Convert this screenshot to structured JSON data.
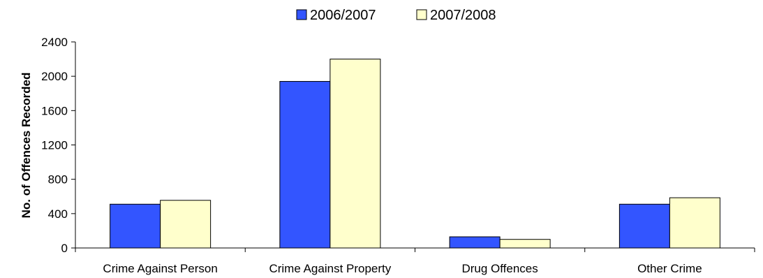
{
  "chart_data": {
    "type": "bar",
    "categories": [
      "Crime Against Person",
      "Crime Against Property",
      "Drug Offences",
      "Other Crime"
    ],
    "series": [
      {
        "name": "2006/2007",
        "values": [
          510,
          1940,
          130,
          510
        ],
        "color": "#3355FF"
      },
      {
        "name": "2007/2008",
        "values": [
          555,
          2200,
          100,
          585
        ],
        "color": "#FFFFCC"
      }
    ],
    "title": "",
    "xlabel": "",
    "ylabel": "No. of Offences Recorded",
    "ylim": [
      0,
      2400
    ],
    "yticks": [
      0,
      400,
      800,
      1200,
      1600,
      2000,
      2400
    ],
    "ytick_labels": [
      "0",
      "400",
      "800",
      "1200",
      "1600",
      "2000",
      "2400"
    ],
    "grid": false,
    "legend_position": "top"
  }
}
